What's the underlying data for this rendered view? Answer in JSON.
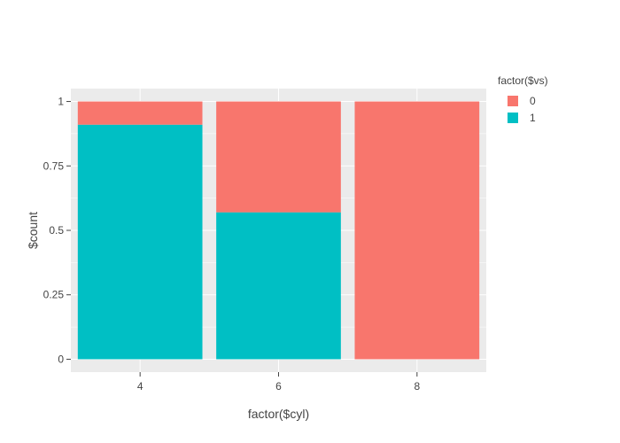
{
  "chart_data": {
    "type": "bar",
    "stacked": true,
    "categories": [
      "4",
      "6",
      "8"
    ],
    "series": [
      {
        "name": "0",
        "values": [
          0.09,
          0.43,
          1.0
        ],
        "color": "#F8766D"
      },
      {
        "name": "1",
        "values": [
          0.91,
          0.57,
          0.0
        ],
        "color": "#00BFC4"
      }
    ],
    "xlabel": "factor($cyl)",
    "ylabel": "$count",
    "ylim": [
      -0.05,
      1.05
    ],
    "yticks": [
      0,
      0.25,
      0.5,
      0.75,
      1
    ],
    "ytick_labels": [
      "0",
      "0.25",
      "0.5",
      "0.75",
      "1"
    ],
    "legend_title": "factor($vs)",
    "legend_position": "right",
    "grid": true,
    "background_color": "#EBEBEB",
    "grid_color": "#FFFFFF"
  }
}
